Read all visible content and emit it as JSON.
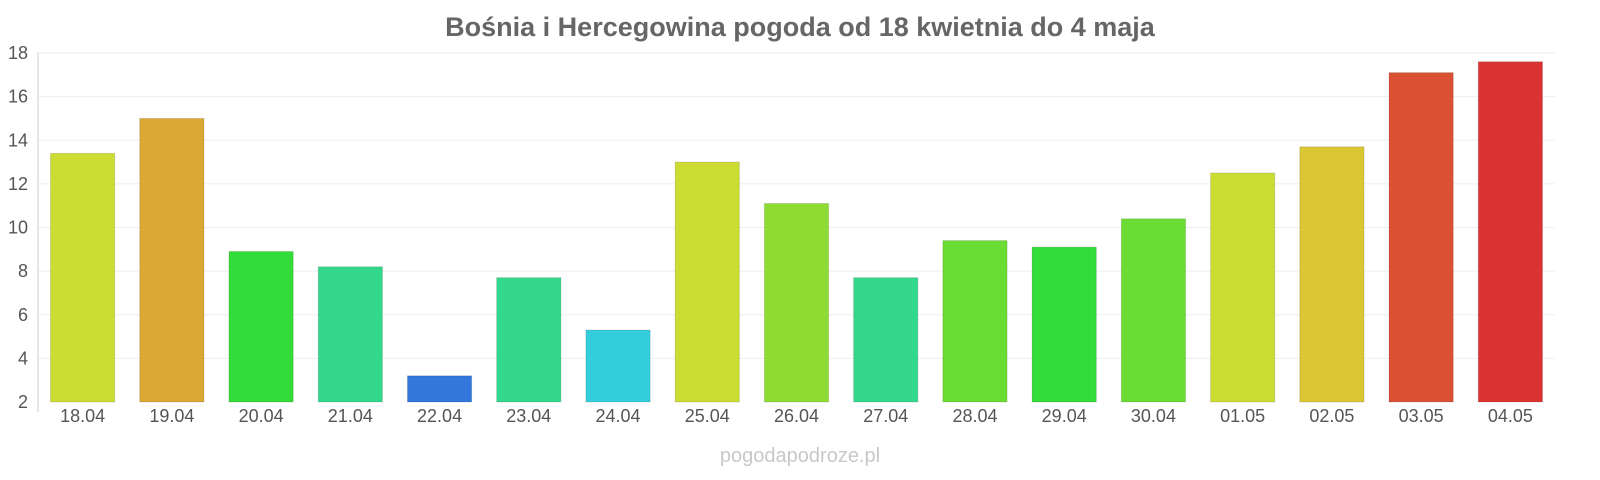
{
  "chart_data": {
    "type": "bar",
    "title": "Bośnia i Hercegowina pogoda od 18 kwietnia do 4 maja",
    "xlabel": "",
    "ylabel": "",
    "ylim": [
      2,
      18
    ],
    "yticks": [
      2,
      4,
      6,
      8,
      10,
      12,
      14,
      16,
      18
    ],
    "grid": true,
    "legend": "none",
    "categories": [
      "18.04",
      "19.04",
      "20.04",
      "21.04",
      "22.04",
      "23.04",
      "24.04",
      "25.04",
      "26.04",
      "27.04",
      "28.04",
      "29.04",
      "30.04",
      "01.05",
      "02.05",
      "03.05",
      "04.05"
    ],
    "values": [
      13.4,
      15.0,
      8.9,
      8.2,
      3.2,
      7.7,
      5.3,
      13.0,
      11.1,
      7.7,
      9.4,
      9.1,
      10.4,
      12.5,
      13.7,
      17.1,
      17.6
    ],
    "colors": [
      "#cddc33",
      "#dba833",
      "#33dc39",
      "#33d88c",
      "#3376dc",
      "#33d88c",
      "#33cedc",
      "#cddc33",
      "#8edc33",
      "#33d88c",
      "#6bdc33",
      "#33dc39",
      "#6bdc33",
      "#cddc33",
      "#dbc633",
      "#db5133",
      "#db3333"
    ]
  },
  "watermark": "pogodapodroze.pl"
}
